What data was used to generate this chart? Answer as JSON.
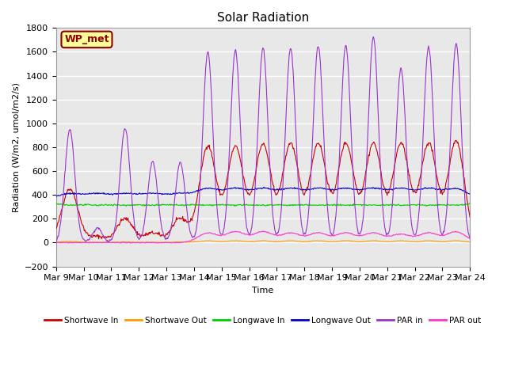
{
  "title": "Solar Radiation",
  "ylabel": "Radiation (W/m2, umol/m2/s)",
  "xlabel": "Time",
  "ylim": [
    -200,
    1800
  ],
  "annotation": "WP_met",
  "bg_color": "#e8e8e8",
  "grid_color": "#ffffff",
  "series": {
    "shortwave_in": {
      "color": "#cc0000",
      "label": "Shortwave In"
    },
    "shortwave_out": {
      "color": "#ff9900",
      "label": "Shortwave Out"
    },
    "longwave_in": {
      "color": "#00cc00",
      "label": "Longwave In"
    },
    "longwave_out": {
      "color": "#0000cc",
      "label": "Longwave Out"
    },
    "par_in": {
      "color": "#9933cc",
      "label": "PAR in"
    },
    "par_out": {
      "color": "#ff33cc",
      "label": "PAR out"
    }
  },
  "xtick_labels": [
    "Mar 9",
    "Mar 10",
    "Mar 11",
    "Mar 12",
    "Mar 13",
    "Mar 14",
    "Mar 15",
    "Mar 16",
    "Mar 17",
    "Mar 18",
    "Mar 19",
    "Mar 20",
    "Mar 21",
    "Mar 22",
    "Mar 23",
    "Mar 24"
  ],
  "num_days": 15,
  "points_per_day": 48
}
